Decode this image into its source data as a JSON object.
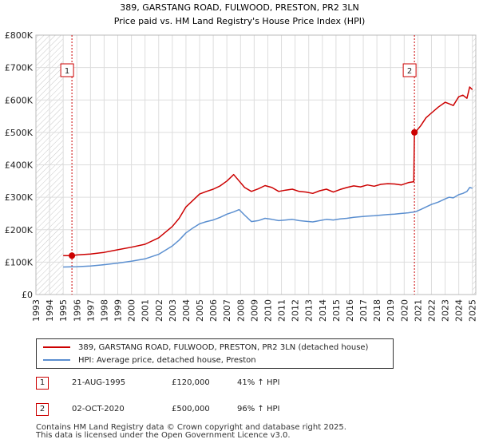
{
  "chart_data": {
    "type": "line",
    "title": "389, GARSTANG ROAD, FULWOOD, PRESTON, PR2 3LN",
    "subtitle": "Price paid vs. HM Land Registry's House Price Index (HPI)",
    "xlabel": "",
    "ylabel": "",
    "xlim": [
      1993.0,
      2025.0
    ],
    "ylim": [
      0,
      800000
    ],
    "y_ticks": [
      0,
      100000,
      200000,
      300000,
      400000,
      500000,
      600000,
      700000,
      800000
    ],
    "y_tick_labels": [
      "£0",
      "£100K",
      "£200K",
      "£300K",
      "£400K",
      "£500K",
      "£600K",
      "£700K",
      "£800K"
    ],
    "x_ticks": [
      "1993",
      "1994",
      "1995",
      "1996",
      "1997",
      "1998",
      "1999",
      "2000",
      "2001",
      "2002",
      "2003",
      "2004",
      "2005",
      "2006",
      "2007",
      "2008",
      "2009",
      "2010",
      "2011",
      "2012",
      "2013",
      "2014",
      "2015",
      "2016",
      "2017",
      "2018",
      "2019",
      "2020",
      "2021",
      "2022",
      "2023",
      "2024",
      "2025"
    ],
    "grid": true,
    "hatched_ranges": [
      [
        1993.0,
        1995.0
      ],
      [
        2025.0,
        2025.25
      ]
    ],
    "series": [
      {
        "name": "389, GARSTANG ROAD, FULWOOD, PRESTON, PR2 3LN (detached house)",
        "color": "#cc0000",
        "x": [
          1995.0,
          1995.64,
          1996.0,
          1997.0,
          1998.0,
          1999.0,
          2000.0,
          2001.0,
          2002.0,
          2003.0,
          2003.5,
          2004.0,
          2004.5,
          2005.0,
          2005.5,
          2006.0,
          2006.5,
          2007.0,
          2007.5,
          2007.9,
          2008.3,
          2008.8,
          2009.3,
          2009.8,
          2010.3,
          2010.8,
          2011.3,
          2011.8,
          2012.3,
          2012.8,
          2013.3,
          2013.8,
          2014.3,
          2014.8,
          2015.3,
          2015.8,
          2016.3,
          2016.8,
          2017.3,
          2017.8,
          2018.3,
          2018.8,
          2019.3,
          2019.8,
          2020.3,
          2020.7,
          2020.75,
          2020.8,
          2021.2,
          2021.6,
          2022.0,
          2022.5,
          2023.0,
          2023.3,
          2023.6,
          2024.0,
          2024.3,
          2024.6,
          2024.8,
          2025.0
        ],
        "y": [
          120000,
          120000,
          122000,
          125000,
          130000,
          138000,
          146000,
          155000,
          175000,
          210000,
          235000,
          270000,
          290000,
          310000,
          318000,
          325000,
          335000,
          350000,
          370000,
          350000,
          330000,
          318000,
          326000,
          336000,
          330000,
          318000,
          322000,
          325000,
          318000,
          316000,
          312000,
          320000,
          325000,
          316000,
          324000,
          330000,
          335000,
          332000,
          338000,
          334000,
          340000,
          342000,
          341000,
          338000,
          345000,
          348000,
          500000,
          500000,
          520000,
          545000,
          560000,
          578000,
          593000,
          588000,
          583000,
          610000,
          615000,
          605000,
          640000,
          632000
        ]
      },
      {
        "name": "HPI: Average price, detached house, Preston",
        "color": "#5b8fd0",
        "x": [
          1995.0,
          1996.0,
          1997.0,
          1998.0,
          1999.0,
          2000.0,
          2001.0,
          2002.0,
          2003.0,
          2003.5,
          2004.0,
          2004.5,
          2005.0,
          2005.5,
          2006.0,
          2006.5,
          2007.0,
          2007.5,
          2007.9,
          2008.3,
          2008.8,
          2009.3,
          2009.8,
          2010.3,
          2010.8,
          2011.3,
          2011.8,
          2012.3,
          2012.8,
          2013.3,
          2013.8,
          2014.3,
          2014.8,
          2015.3,
          2015.8,
          2016.3,
          2016.8,
          2017.3,
          2017.8,
          2018.3,
          2018.8,
          2019.3,
          2019.8,
          2020.3,
          2020.8,
          2021.2,
          2021.6,
          2022.0,
          2022.5,
          2023.0,
          2023.3,
          2023.6,
          2024.0,
          2024.3,
          2024.6,
          2024.8,
          2025.0
        ],
        "y": [
          85000,
          86000,
          88000,
          92000,
          97000,
          103000,
          110000,
          124000,
          150000,
          168000,
          190000,
          205000,
          218000,
          225000,
          230000,
          238000,
          248000,
          255000,
          262000,
          245000,
          225000,
          228000,
          235000,
          232000,
          228000,
          230000,
          232000,
          228000,
          226000,
          224000,
          228000,
          232000,
          230000,
          233000,
          235000,
          238000,
          240000,
          242000,
          243000,
          245000,
          247000,
          248000,
          250000,
          252000,
          255000,
          262000,
          270000,
          278000,
          285000,
          295000,
          300000,
          298000,
          308000,
          312000,
          318000,
          330000,
          328000
        ]
      }
    ],
    "markers": [
      {
        "label": "1",
        "x": 1995.64,
        "y": 120000
      },
      {
        "label": "2",
        "x": 2020.75,
        "y": 500000
      }
    ]
  },
  "legend": {
    "property_label": "389, GARSTANG ROAD, FULWOOD, PRESTON, PR2 3LN (detached house)",
    "hpi_label": "HPI: Average price, detached house, Preston"
  },
  "transactions": [
    {
      "num": "1",
      "date": "21-AUG-1995",
      "price": "£120,000",
      "hpi": "41% ↑ HPI"
    },
    {
      "num": "2",
      "date": "02-OCT-2020",
      "price": "£500,000",
      "hpi": "96% ↑ HPI"
    }
  ],
  "footer": {
    "line1": "Contains HM Land Registry data © Crown copyright and database right 2025.",
    "line2": "This data is licensed under the Open Government Licence v3.0."
  }
}
